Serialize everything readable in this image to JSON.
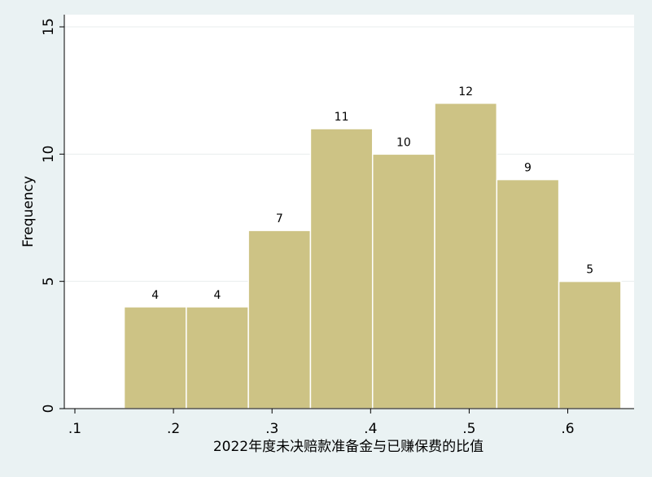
{
  "chart_data": {
    "type": "bar",
    "subtype": "histogram",
    "title": "",
    "xlabel": "2022年度未决赔款准备金与已赚保费的比值",
    "ylabel": "Frequency",
    "bins": [
      {
        "start": 0.15,
        "end": 0.213,
        "value": 4
      },
      {
        "start": 0.213,
        "end": 0.276,
        "value": 4
      },
      {
        "start": 0.276,
        "end": 0.339,
        "value": 7
      },
      {
        "start": 0.339,
        "end": 0.402,
        "value": 11
      },
      {
        "start": 0.402,
        "end": 0.465,
        "value": 10
      },
      {
        "start": 0.465,
        "end": 0.528,
        "value": 12
      },
      {
        "start": 0.528,
        "end": 0.591,
        "value": 9
      },
      {
        "start": 0.591,
        "end": 0.654,
        "value": 5
      }
    ],
    "data_labels": [
      "4",
      "4",
      "7",
      "11",
      "10",
      "12",
      "9",
      "5"
    ],
    "x_ticks": [
      {
        "value": 0.1,
        "label": ".1"
      },
      {
        "value": 0.2,
        "label": ".2"
      },
      {
        "value": 0.3,
        "label": ".3"
      },
      {
        "value": 0.4,
        "label": ".4"
      },
      {
        "value": 0.5,
        "label": ".5"
      },
      {
        "value": 0.6,
        "label": ".6"
      }
    ],
    "y_ticks": [
      {
        "value": 0,
        "label": "0"
      },
      {
        "value": 5,
        "label": "5"
      },
      {
        "value": 10,
        "label": "10"
      },
      {
        "value": 15,
        "label": "15"
      }
    ],
    "xlim": [
      0.09,
      0.66
    ],
    "ylim": [
      0,
      15
    ],
    "grid": "horizontal",
    "colors": {
      "bar_fill": "#cdc385",
      "bar_stroke": "#ffffff",
      "plot_bg": "#ffffff",
      "page_bg": "#eaf2f3",
      "grid": "#e8eded",
      "axis": "#000000"
    }
  }
}
